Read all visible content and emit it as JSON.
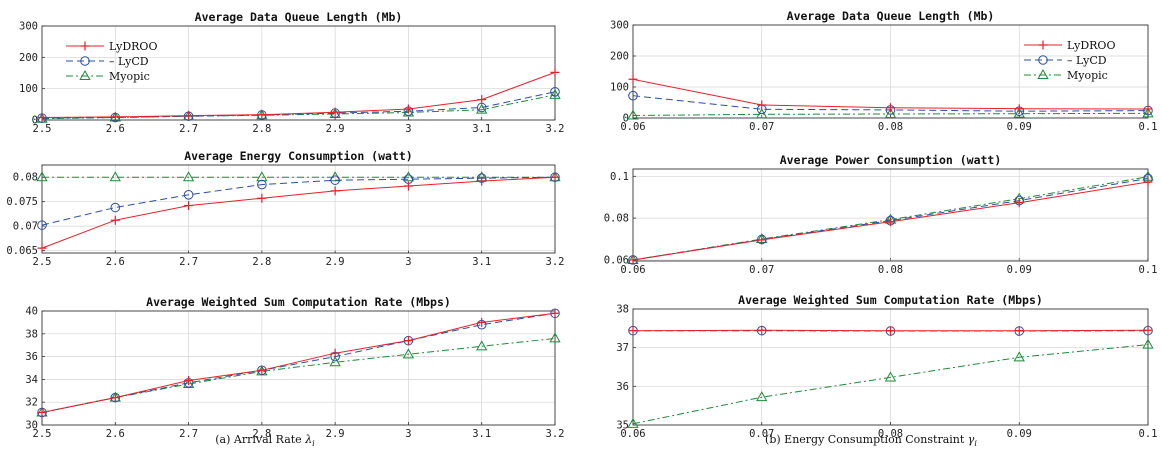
{
  "colors": {
    "lydroo": "#e8202a",
    "lycd": "#2a4fa8",
    "myopic": "#1f8a3a"
  },
  "legend": [
    "LyDROO",
    "LyCD",
    "Myopic"
  ],
  "captions": {
    "a_prefix": "(a) Arrival Rate ",
    "a_sym": "λ",
    "a_sub": "i",
    "b_prefix": "(b) Energy Consumption Constraint ",
    "b_sym": "γ",
    "b_sub": "i"
  },
  "chart_data": [
    {
      "id": "a1",
      "type": "line",
      "title": "Average Data Queue Length (Mb)",
      "x": [
        2.5,
        2.6,
        2.7,
        2.8,
        2.9,
        3.0,
        3.1,
        3.2
      ],
      "xticks": [
        "2.5",
        "2.6",
        "2.7",
        "2.8",
        "2.9",
        "3",
        "3.1",
        "3.2"
      ],
      "yticks": [
        "0",
        "100",
        "200",
        "300"
      ],
      "ylim": [
        0,
        300
      ],
      "grid": true,
      "legend": "top-left",
      "series": [
        {
          "name": "LyDROO",
          "values": [
            8,
            10,
            14,
            17,
            25,
            35,
            65,
            152
          ]
        },
        {
          "name": "LyCD",
          "values": [
            6,
            8,
            12,
            16,
            22,
            28,
            40,
            90
          ]
        },
        {
          "name": "Myopic",
          "values": [
            4,
            8,
            12,
            15,
            19,
            24,
            33,
            80
          ]
        }
      ]
    },
    {
      "id": "a2",
      "type": "line",
      "title": "Average Energy Consumption (watt)",
      "x": [
        2.5,
        2.6,
        2.7,
        2.8,
        2.9,
        3.0,
        3.1,
        3.2
      ],
      "xticks": [
        "2.5",
        "2.6",
        "2.7",
        "2.8",
        "2.9",
        "3",
        "3.1",
        "3.2"
      ],
      "yticks": [
        "0.065",
        "0.07",
        "0.075",
        "0.08"
      ],
      "ylim": [
        0.0645,
        0.0825
      ],
      "grid": true,
      "series": [
        {
          "name": "LyDROO",
          "values": [
            0.0655,
            0.0712,
            0.0742,
            0.0757,
            0.0772,
            0.0782,
            0.0792,
            0.08
          ]
        },
        {
          "name": "LyCD",
          "values": [
            0.0702,
            0.0738,
            0.0764,
            0.0785,
            0.0794,
            0.0796,
            0.0798,
            0.08
          ]
        },
        {
          "name": "Myopic",
          "values": [
            0.08,
            0.08,
            0.08,
            0.08,
            0.08,
            0.08,
            0.08,
            0.08
          ]
        }
      ]
    },
    {
      "id": "a3",
      "type": "line",
      "title": "Average Weighted Sum Computation Rate (Mbps)",
      "x": [
        2.5,
        2.6,
        2.7,
        2.8,
        2.9,
        3.0,
        3.1,
        3.2
      ],
      "xticks": [
        "2.5",
        "2.6",
        "2.7",
        "2.8",
        "2.9",
        "3",
        "3.1",
        "3.2"
      ],
      "yticks": [
        "30",
        "32",
        "34",
        "36",
        "38",
        "40"
      ],
      "ylim": [
        30,
        40
      ],
      "grid": true,
      "series": [
        {
          "name": "LyDROO",
          "values": [
            31.1,
            32.4,
            33.9,
            34.8,
            36.3,
            37.4,
            39.0,
            39.8
          ]
        },
        {
          "name": "LyCD",
          "values": [
            31.1,
            32.4,
            33.7,
            34.8,
            36.0,
            37.4,
            38.8,
            39.8
          ]
        },
        {
          "name": "Myopic",
          "values": [
            31.1,
            32.4,
            33.6,
            34.7,
            35.5,
            36.2,
            36.9,
            37.6
          ]
        }
      ]
    },
    {
      "id": "b1",
      "type": "line",
      "title": "Average Data Queue Length (Mb)",
      "x": [
        0.06,
        0.07,
        0.08,
        0.09,
        0.1
      ],
      "xticks": [
        "0.06",
        "0.07",
        "0.08",
        "0.09",
        "0.1"
      ],
      "yticks": [
        "0",
        "100",
        "200",
        "300"
      ],
      "ylim": [
        0,
        300
      ],
      "grid": true,
      "legend": "top-right",
      "series": [
        {
          "name": "LyDROO",
          "values": [
            125,
            42,
            33,
            30,
            29
          ]
        },
        {
          "name": "LyCD",
          "values": [
            72,
            28,
            26,
            22,
            24
          ]
        },
        {
          "name": "Myopic",
          "values": [
            8,
            12,
            13,
            14,
            15
          ]
        }
      ]
    },
    {
      "id": "b2",
      "type": "line",
      "title": "Average Power Consumption (watt)",
      "x": [
        0.06,
        0.07,
        0.08,
        0.09,
        0.1
      ],
      "xticks": [
        "0.06",
        "0.07",
        "0.08",
        "0.09",
        "0.1"
      ],
      "yticks": [
        "0.06",
        "0.08",
        "0.1"
      ],
      "ylim": [
        0.0595,
        0.1035
      ],
      "grid": true,
      "series": [
        {
          "name": "LyDROO",
          "values": [
            0.06,
            0.0696,
            0.0783,
            0.0874,
            0.0973
          ]
        },
        {
          "name": "LyCD",
          "values": [
            0.06,
            0.0698,
            0.0788,
            0.0884,
            0.099
          ]
        },
        {
          "name": "Myopic",
          "values": [
            0.06,
            0.07,
            0.0793,
            0.0893,
            0.0998
          ]
        }
      ]
    },
    {
      "id": "b3",
      "type": "line",
      "title": "Average Weighted Sum Computation Rate (Mbps)",
      "x": [
        0.06,
        0.07,
        0.08,
        0.09,
        0.1
      ],
      "xticks": [
        "0.06",
        "0.07",
        "0.08",
        "0.09",
        "0.1"
      ],
      "yticks": [
        "35",
        "36",
        "37",
        "38"
      ],
      "ylim": [
        35,
        38
      ],
      "grid": true,
      "series": [
        {
          "name": "LyDROO",
          "values": [
            37.44,
            37.45,
            37.44,
            37.44,
            37.45
          ]
        },
        {
          "name": "LyCD",
          "values": [
            37.44,
            37.44,
            37.43,
            37.43,
            37.44
          ]
        },
        {
          "name": "Myopic",
          "values": [
            35.03,
            35.72,
            36.23,
            36.75,
            37.08
          ]
        }
      ]
    }
  ]
}
